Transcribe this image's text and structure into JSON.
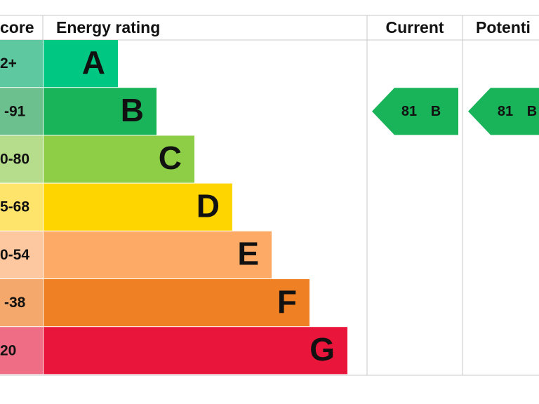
{
  "header": {
    "score": "core",
    "rating": "Energy rating",
    "current": "Current",
    "potential": "Potenti"
  },
  "rows": [
    {
      "score": "2+",
      "letter": "A",
      "color": "#00c781",
      "score_color": "#5ec9a0"
    },
    {
      "score": "-91",
      "letter": "B",
      "color": "#19b459",
      "score_color": "#6cc08e"
    },
    {
      "score": "0-80",
      "letter": "C",
      "color": "#8dce46",
      "score_color": "#b6dd8b"
    },
    {
      "score": "5-68",
      "letter": "D",
      "color": "#ffd500",
      "score_color": "#ffe46b"
    },
    {
      "score": "0-54",
      "letter": "E",
      "color": "#fcaa65",
      "score_color": "#fdc89f"
    },
    {
      "score": "-38",
      "letter": "F",
      "color": "#ef8023",
      "score_color": "#f4a86b"
    },
    {
      "score": "20",
      "letter": "G",
      "color": "#e9153b",
      "score_color": "#ef6e86"
    }
  ],
  "current": {
    "value": 81,
    "letter": "B",
    "color": "#19b459"
  },
  "potential": {
    "value": 81,
    "letter": "B",
    "color": "#19b459"
  }
}
